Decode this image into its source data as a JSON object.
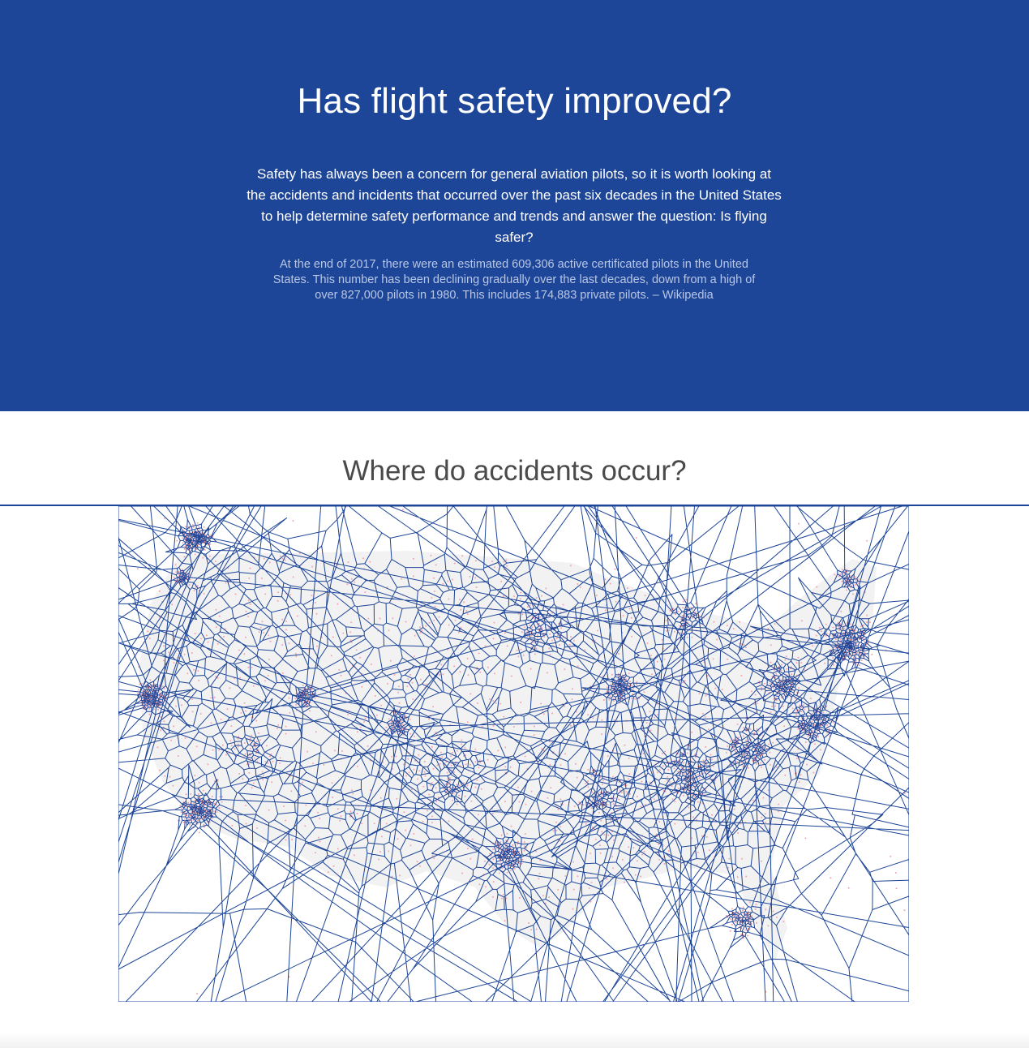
{
  "hero": {
    "title": "Has flight safety improved?",
    "intro": "Safety has always been a concern for general aviation pilots, so it is worth looking at the accidents and incidents that occurred over the past six decades in the United States to help determine safety performance and trends and answer the question: Is flying safer?",
    "quote": "At the end of 2017, there were an estimated 609,306 active certificated pilots in the United States. This number has been declining gradually over the last decades, down from a high of over 827,000 pilots in 1980. This includes 174,883 private pilots. – Wikipedia"
  },
  "section": {
    "title": "Where do accidents occur?"
  },
  "colors": {
    "primary": "#1d4598",
    "accident_dot": "#f2a3ad",
    "land": "#f2f2f2"
  }
}
